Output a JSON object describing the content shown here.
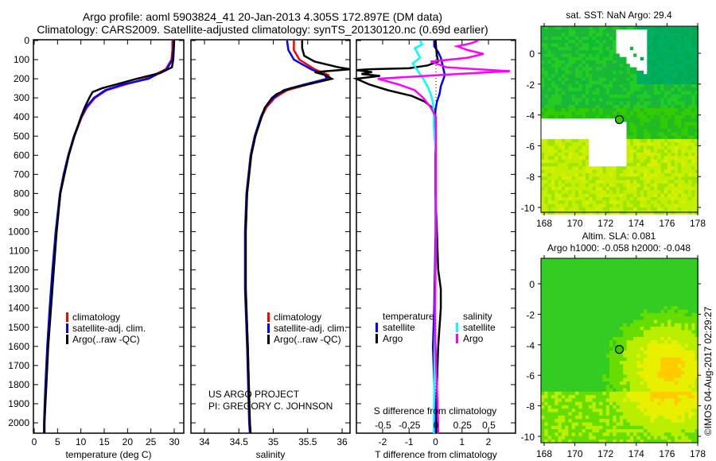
{
  "header": {
    "title_line1": "Argo profile: aoml 5903824_41 20-Jan-2013 4.305S 172.897E (DM data)",
    "title_line2": "Climatology: CARS2009. Satellite-adjusted climatology: synTS_20130120.nc (0.69d earlier)"
  },
  "credit": {
    "line1": "US ARGO PROJECT",
    "line2": "PI: GREGORY C. JOHNSON"
  },
  "footer_stamp": "©IMOS 04-Aug-2017 02:29:27",
  "colors": {
    "climatology": "#ff0000",
    "satellite": "#0000ff",
    "argo": "#000000",
    "sal_satellite": "#00ffff",
    "sal_argo": "#ff00ff"
  },
  "chart_data": [
    {
      "type": "line",
      "id": "temperature",
      "xlabel": "temperature (deg C)",
      "ylabel": "",
      "xlim": [
        -2,
        31
      ],
      "ylim": [
        2055,
        0
      ],
      "xticks": [
        0,
        5,
        10,
        15,
        20,
        25,
        30
      ],
      "yticks": [
        0,
        100,
        200,
        300,
        400,
        500,
        600,
        700,
        800,
        900,
        1000,
        1100,
        1200,
        1300,
        1400,
        1500,
        1600,
        1700,
        1800,
        1900,
        2000
      ],
      "legend": [
        "climatology",
        "satellite-adj. clim.",
        "Argo(..raw -QC)"
      ],
      "series": [
        {
          "name": "climatology",
          "color": "#ff0000",
          "depth": [
            0,
            50,
            100,
            150,
            200,
            230,
            260,
            300,
            350,
            400,
            500,
            600,
            700,
            800,
            1000,
            1200,
            1400,
            1600,
            1800,
            2000,
            2055
          ],
          "values": [
            29.6,
            29.6,
            29.4,
            28.2,
            24,
            19.5,
            15.5,
            13,
            11.3,
            10.2,
            8.6,
            7.4,
            6.4,
            5.6,
            4.7,
            4.0,
            3.4,
            2.9,
            2.5,
            2.2,
            2.2
          ]
        },
        {
          "name": "satellite-adj. clim.",
          "color": "#0000ff",
          "depth": [
            0,
            50,
            100,
            150,
            200,
            230,
            260,
            300,
            350,
            400,
            500,
            600,
            700,
            800,
            1000,
            1200,
            1400,
            1600,
            1800,
            2000,
            2055
          ],
          "values": [
            29.9,
            29.8,
            29.6,
            28.4,
            24.5,
            19,
            15.2,
            12.8,
            11.1,
            10.1,
            8.5,
            7.3,
            6.3,
            5.5,
            4.6,
            3.9,
            3.3,
            2.8,
            2.4,
            2.1,
            2.1
          ]
        },
        {
          "name": "Argo(..raw -QC)",
          "color": "#000000",
          "depth": [
            0,
            50,
            100,
            140,
            170,
            200,
            230,
            250,
            270,
            300,
            350,
            400,
            500,
            600,
            700,
            800,
            1000,
            1200,
            1400,
            1600,
            1800,
            2000,
            2055
          ],
          "values": [
            30,
            29.9,
            29.8,
            29.5,
            27,
            22,
            17.5,
            14.5,
            12.5,
            11.8,
            10.8,
            10,
            8.6,
            7.4,
            6.5,
            5.6,
            4.8,
            4.2,
            3.6,
            3.0,
            2.6,
            2.2,
            2.2
          ]
        }
      ]
    },
    {
      "type": "line",
      "id": "salinity",
      "xlabel": "salinity",
      "xlim": [
        33.7,
        36.1
      ],
      "ylim": [
        2055,
        0
      ],
      "xticks": [
        34,
        34.5,
        35,
        35.5,
        36
      ],
      "legend": [
        "climatology",
        "satellite-adj. clim.",
        "Argo(..raw -QC)"
      ],
      "series": [
        {
          "name": "climatology",
          "color": "#ff0000",
          "depth": [
            0,
            50,
            100,
            150,
            180,
            200,
            230,
            260,
            300,
            350,
            400,
            500,
            600,
            800,
            1000,
            1300,
            1600,
            2000,
            2055
          ],
          "values": [
            35.3,
            35.3,
            35.38,
            35.6,
            35.8,
            35.82,
            35.5,
            35.2,
            35.02,
            34.9,
            34.83,
            34.74,
            34.68,
            34.62,
            34.6,
            34.6,
            34.63,
            34.66,
            34.67
          ]
        },
        {
          "name": "satellite-adj. clim.",
          "color": "#0000ff",
          "depth": [
            0,
            50,
            100,
            150,
            180,
            200,
            230,
            260,
            300,
            350,
            400,
            500,
            600,
            800,
            1000,
            1300,
            1600,
            2000,
            2055
          ],
          "values": [
            35.2,
            35.22,
            35.3,
            35.55,
            35.75,
            35.78,
            35.45,
            35.15,
            35.0,
            34.88,
            34.82,
            34.73,
            34.67,
            34.61,
            34.59,
            34.59,
            34.62,
            34.65,
            34.66
          ]
        },
        {
          "name": "Argo(..raw -QC)",
          "color": "#000000",
          "depth": [
            0,
            40,
            80,
            110,
            140,
            150,
            165,
            180,
            200,
            230,
            250,
            280,
            300,
            350,
            400,
            500,
            600,
            800,
            1000,
            1300,
            1600,
            2000,
            2055
          ],
          "values": [
            35.42,
            35.42,
            35.45,
            35.6,
            35.95,
            36.12,
            35.6,
            35.75,
            35.85,
            35.5,
            35.25,
            35.05,
            34.98,
            34.88,
            34.83,
            34.74,
            34.68,
            34.62,
            34.6,
            34.6,
            34.63,
            34.66,
            34.67
          ]
        }
      ]
    },
    {
      "type": "line",
      "id": "difference",
      "xlabel": "T difference from climatology",
      "x2label": "S difference from climatology",
      "xlim": [
        -3,
        3
      ],
      "ylim": [
        2055,
        0
      ],
      "xticks": [
        -2,
        -1,
        0,
        1,
        2
      ],
      "x2ticks": [
        -0.5,
        -0.25,
        0,
        0.25,
        0.5
      ],
      "x2lim": [
        -0.75,
        0.75
      ],
      "legend": {
        "temperature_header": "temperature",
        "salinity_header": "salinity",
        "entries": [
          "satellite",
          "Argo",
          "satellite",
          "Argo"
        ]
      },
      "series": [
        {
          "name": "temperature satellite",
          "axis": "T",
          "color": "#0000ff",
          "depth": [
            0,
            30,
            60,
            90,
            120,
            150,
            180,
            200,
            240,
            280,
            320,
            360,
            400,
            500,
            700,
            1000,
            1400,
            1600,
            2000,
            2055
          ],
          "values": [
            -0.05,
            -0.05,
            0.1,
            0.2,
            0.25,
            0.3,
            0.35,
            0.3,
            0.2,
            0.15,
            0.05,
            0,
            -0.02,
            0,
            0,
            0,
            -0.05,
            -0.1,
            0,
            0
          ]
        },
        {
          "name": "temperature Argo",
          "axis": "T",
          "color": "#000000",
          "depth": [
            0,
            40,
            80,
            110,
            130,
            145,
            150,
            155,
            165,
            175,
            185,
            200,
            230,
            260,
            290,
            320,
            360,
            400,
            600,
            800,
            1000,
            1200,
            1300,
            1400,
            1600,
            1800,
            2000,
            2055
          ],
          "values": [
            0,
            0.02,
            0.05,
            0.1,
            -0.3,
            -1,
            -2.5,
            -3,
            -2.4,
            -2.8,
            -2.1,
            -3,
            -2.5,
            -1.8,
            -0.9,
            -0.4,
            -0.05,
            0,
            0,
            0,
            0.05,
            0.1,
            0.2,
            0.2,
            0.1,
            0.05,
            0.05,
            0.05
          ]
        },
        {
          "name": "salinity satellite",
          "axis": "S",
          "color": "#00ffff",
          "depth": [
            0,
            20,
            40,
            60,
            90,
            120,
            160,
            200,
            240,
            280,
            320,
            380,
            450,
            600,
            800,
            1000,
            1500,
            2000,
            2055
          ],
          "values": [
            -0.15,
            -0.13,
            -0.2,
            -0.18,
            -0.15,
            -0.22,
            -0.17,
            -0.12,
            -0.08,
            -0.05,
            -0.03,
            -0.02,
            -0.02,
            0,
            0,
            0,
            -0.01,
            -0.02,
            -0.02
          ]
        },
        {
          "name": "salinity Argo",
          "axis": "S",
          "color": "#ff00ff",
          "depth": [
            0,
            15,
            30,
            50,
            70,
            90,
            110,
            140,
            160,
            175,
            185,
            200,
            230,
            260,
            300,
            350,
            400,
            500,
            800,
            1000,
            1500,
            2000,
            2055
          ],
          "values": [
            0.4,
            0.33,
            0.2,
            0.3,
            0.45,
            0.3,
            -0.05,
            0.1,
            0.7,
            0.2,
            -0.1,
            -0.55,
            -0.35,
            -0.2,
            -0.12,
            -0.05,
            0,
            0,
            0,
            0,
            -0.01,
            0.02,
            0.02
          ]
        }
      ]
    },
    {
      "type": "heatmap",
      "id": "sst_map",
      "title": "sat. SST: NaN Argo: 29.4",
      "xlim": [
        167.8,
        178
      ],
      "ylim": [
        -10.3,
        1.7
      ],
      "xticks": [
        168,
        170,
        172,
        174,
        176,
        178
      ],
      "yticks": [
        0,
        -2,
        -4,
        -6,
        -8,
        -10
      ],
      "argo_position": {
        "lon": 172.897,
        "lat": -4.305
      }
    },
    {
      "type": "heatmap",
      "id": "sla_map",
      "title_line1": "Altim. SLA: 0.081",
      "title_line2": "Argo h1000: -0.058 h2000: -0.048",
      "xlim": [
        167.8,
        178
      ],
      "ylim": [
        -10.3,
        1.7
      ],
      "xticks": [
        168,
        170,
        172,
        174,
        176,
        178
      ],
      "yticks": [
        0,
        -2,
        -4,
        -6,
        -8,
        -10
      ],
      "argo_position": {
        "lon": 172.897,
        "lat": -4.305
      }
    }
  ]
}
